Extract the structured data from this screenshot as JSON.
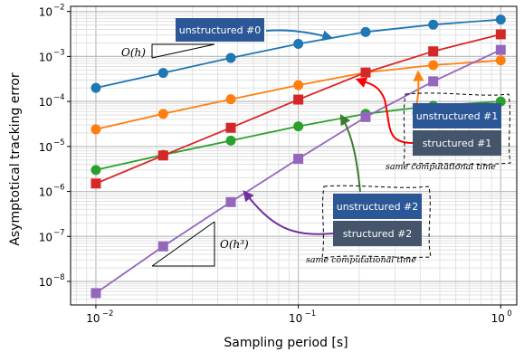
{
  "chart_data": {
    "type": "line",
    "xlabel": "Sampling period [s]",
    "ylabel": "Asymptotical tracking error",
    "xscale": "log",
    "yscale": "log",
    "xlim": [
      0.0075,
      1.2
    ],
    "ylim": [
      3e-09,
      0.013
    ],
    "grid": true,
    "x_ticks": [
      {
        "value": 0.01,
        "label": "10",
        "exp": "−2"
      },
      {
        "value": 0.1,
        "label": "10",
        "exp": "−1"
      },
      {
        "value": 1,
        "label": "10",
        "exp": "0"
      }
    ],
    "y_ticks": [
      {
        "value": 1e-08,
        "label": "10",
        "exp": "−8"
      },
      {
        "value": 1e-07,
        "label": "10",
        "exp": "−7"
      },
      {
        "value": 1e-06,
        "label": "10",
        "exp": "−6"
      },
      {
        "value": 1e-05,
        "label": "10",
        "exp": "−5"
      },
      {
        "value": 0.0001,
        "label": "10",
        "exp": "−4"
      },
      {
        "value": 0.001,
        "label": "10",
        "exp": "−3"
      },
      {
        "value": 0.01,
        "label": "10",
        "exp": "−2"
      }
    ],
    "x": [
      0.01,
      0.0215,
      0.0464,
      0.1,
      0.215,
      0.464,
      1.0
    ],
    "series": [
      {
        "color": "#1f77b4",
        "marker": "circle",
        "values": [
          0.0002,
          0.00043,
          0.00093,
          0.0019,
          0.0035,
          0.0051,
          0.0066
        ]
      },
      {
        "color": "#ff7f0e",
        "marker": "circle",
        "values": [
          2.4e-05,
          5.3e-05,
          0.000112,
          0.00023,
          0.00044,
          0.00064,
          0.00082
        ]
      },
      {
        "color": "#2ca02c",
        "marker": "circle",
        "values": [
          3e-06,
          6.5e-06,
          1.35e-05,
          2.8e-05,
          5.3e-05,
          8e-05,
          0.0001
        ]
      },
      {
        "color": "#d62728",
        "marker": "square",
        "values": [
          1.5e-06,
          6.3e-06,
          2.6e-05,
          0.00011,
          0.00044,
          0.0013,
          0.0031
        ]
      },
      {
        "color": "#9467bd",
        "marker": "square",
        "values": [
          5.5e-09,
          6e-08,
          5.8e-07,
          5.3e-06,
          4.5e-05,
          0.00028,
          0.0014
        ]
      }
    ],
    "annotations": {
      "unstructured0": "unstructured #0",
      "unstructured1": "unstructured #1",
      "structured1": "structured #1",
      "unstructured2": "unstructured #2",
      "structured2": "structured #2",
      "same_time_1": "same computational time",
      "same_time_2": "same computational time",
      "order_h": "O(h)",
      "order_h3": "O(h³)",
      "box_color_unstructured": "#2b5797",
      "box_color_structured": "#44546a"
    }
  }
}
